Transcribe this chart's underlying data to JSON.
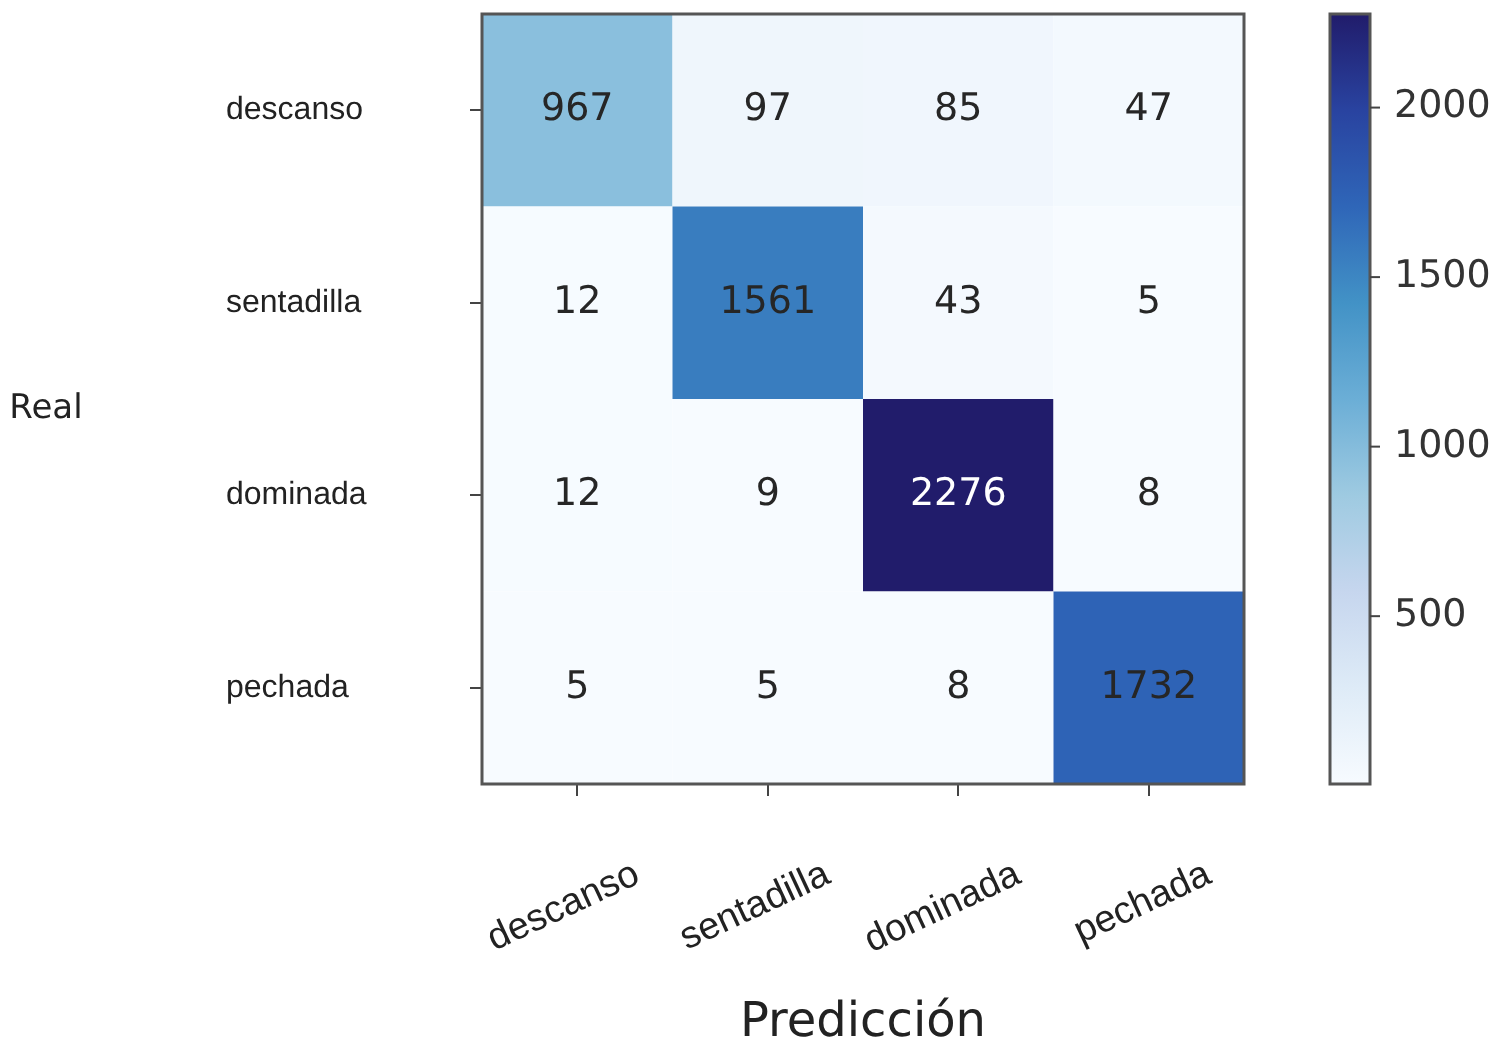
{
  "chart_data": {
    "type": "heatmap",
    "xlabel": "Predicción",
    "ylabel": "Real",
    "categories": [
      "descanso",
      "sentadilla",
      "dominada",
      "pechada"
    ],
    "y_categories": [
      "descanso",
      "sentadilla",
      "dominada",
      "pechada"
    ],
    "cells": [
      [
        967,
        97,
        85,
        47
      ],
      [
        12,
        1561,
        43,
        5
      ],
      [
        12,
        9,
        2276,
        8
      ],
      [
        5,
        5,
        8,
        1732
      ]
    ],
    "clim": [
      5,
      2276
    ],
    "cticks": [
      500,
      1000,
      1500,
      2000
    ],
    "data_labels": true
  }
}
